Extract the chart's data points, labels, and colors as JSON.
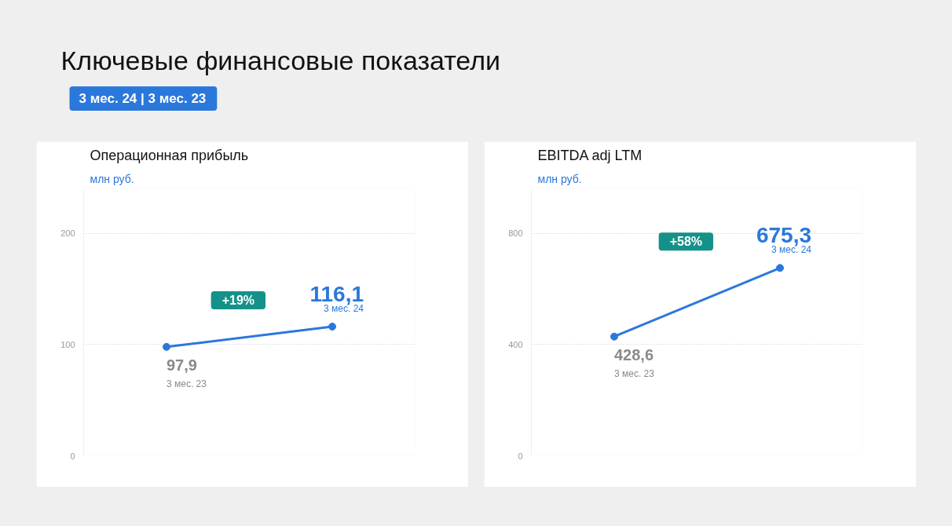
{
  "chart_data": [
    {
      "type": "line",
      "title": "Операционная прибыль",
      "subtitle": "млн руб.",
      "annotations": [
        "Ключевые финансовые показатели",
        "3 мес. 24 | 3 мес. 23",
        "+19%"
      ],
      "categories": [
        "3 мес. 23",
        "3 мес. 24"
      ],
      "series": [
        {
          "color": "#2b78dc",
          "values": [
            97.9,
            116.1
          ],
          "value_labels": [
            "97,9",
            "116,1"
          ]
        }
      ],
      "ylim": [
        0,
        240
      ],
      "yticks": [
        0,
        100,
        200
      ],
      "grid": "y",
      "marker": "circle",
      "line_style": "solid",
      "tick_labels": "y"
    },
    {
      "type": "line",
      "title": "EBITDA adj LTM",
      "subtitle": "млн руб.",
      "annotations": [
        "+58%"
      ],
      "categories": [
        "3 мес. 23",
        "3 мес. 24"
      ],
      "series": [
        {
          "color": "#2b78dc",
          "values": [
            428.6,
            675.3
          ],
          "value_labels": [
            "428,6",
            "675,3"
          ]
        }
      ],
      "ylim": [
        0,
        960
      ],
      "yticks": [
        0,
        400,
        800
      ],
      "grid": "y",
      "marker": "circle",
      "line_style": "solid",
      "tick_labels": "y"
    }
  ]
}
